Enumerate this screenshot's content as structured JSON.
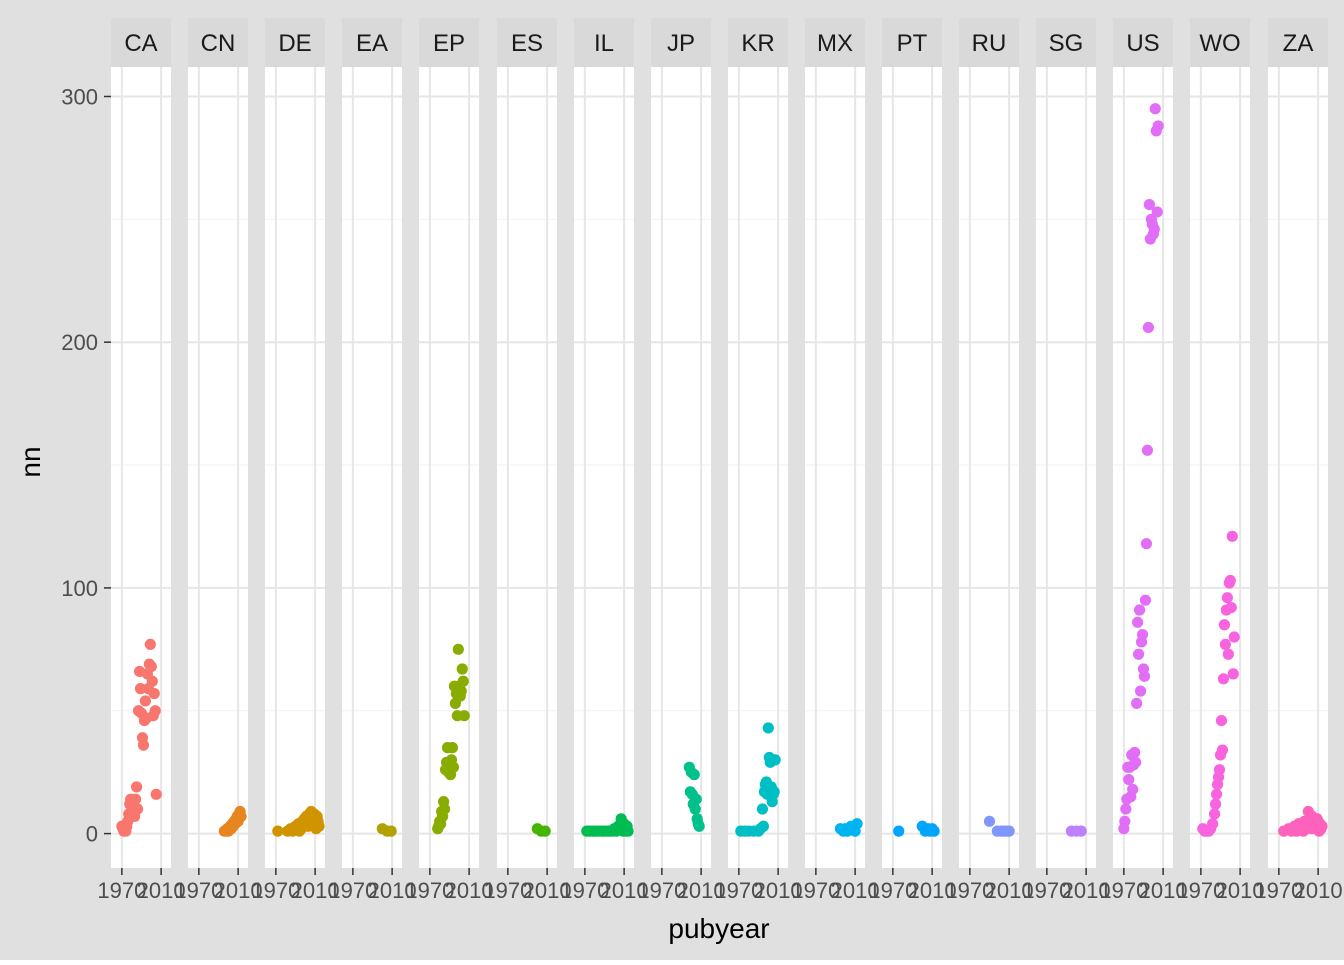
{
  "chart_data": {
    "type": "scatter",
    "title": "",
    "xlabel": "pubyear",
    "ylabel": "nn",
    "x_ticks": [
      1970,
      2010
    ],
    "y_ticks": [
      0,
      100,
      200,
      300
    ],
    "xlim": [
      1962,
      2017
    ],
    "ylim": [
      -14,
      312
    ],
    "grid": true,
    "legend": "none",
    "facets": [
      {
        "name": "CA",
        "color": "#F8766D",
        "points": [
          [
            1970,
            3
          ],
          [
            1971,
            2
          ],
          [
            1972,
            1
          ],
          [
            1973,
            2
          ],
          [
            1974,
            1
          ],
          [
            1975,
            3
          ],
          [
            1976,
            5
          ],
          [
            1977,
            8
          ],
          [
            1978,
            12
          ],
          [
            1979,
            14
          ],
          [
            1980,
            9
          ],
          [
            1981,
            13
          ],
          [
            1982,
            8
          ],
          [
            1983,
            7
          ],
          [
            1984,
            14
          ],
          [
            1985,
            19
          ],
          [
            1986,
            10
          ],
          [
            1987,
            50
          ],
          [
            1988,
            66
          ],
          [
            1989,
            59
          ],
          [
            1990,
            49
          ],
          [
            1991,
            39
          ],
          [
            1992,
            36
          ],
          [
            1993,
            46
          ],
          [
            1994,
            54
          ],
          [
            1995,
            47
          ],
          [
            1996,
            65
          ],
          [
            1997,
            59
          ],
          [
            1998,
            69
          ],
          [
            1999,
            77
          ],
          [
            2000,
            68
          ],
          [
            2001,
            62
          ],
          [
            2002,
            48
          ],
          [
            2003,
            57
          ],
          [
            2004,
            50
          ],
          [
            2005,
            16
          ]
        ]
      },
      {
        "name": "CN",
        "color": "#E7851E",
        "points": [
          [
            1996,
            1
          ],
          [
            1998,
            1
          ],
          [
            1999,
            2
          ],
          [
            2000,
            1
          ],
          [
            2001,
            2
          ],
          [
            2002,
            3
          ],
          [
            2003,
            2
          ],
          [
            2004,
            4
          ],
          [
            2005,
            3
          ],
          [
            2006,
            5
          ],
          [
            2007,
            4
          ],
          [
            2008,
            6
          ],
          [
            2009,
            7
          ],
          [
            2010,
            5
          ],
          [
            2011,
            8
          ],
          [
            2012,
            9
          ],
          [
            2013,
            7
          ]
        ]
      },
      {
        "name": "DE",
        "color": "#D09400",
        "points": [
          [
            1972,
            1
          ],
          [
            1982,
            1
          ],
          [
            1985,
            2
          ],
          [
            1987,
            1
          ],
          [
            1990,
            3
          ],
          [
            1991,
            2
          ],
          [
            1993,
            4
          ],
          [
            1994,
            1
          ],
          [
            1996,
            2
          ],
          [
            1997,
            5
          ],
          [
            1998,
            3
          ],
          [
            1999,
            6
          ],
          [
            2000,
            4
          ],
          [
            2001,
            7
          ],
          [
            2002,
            5
          ],
          [
            2003,
            3
          ],
          [
            2004,
            8
          ],
          [
            2005,
            6
          ],
          [
            2006,
            9
          ],
          [
            2007,
            7
          ],
          [
            2008,
            4
          ],
          [
            2009,
            8
          ],
          [
            2010,
            6
          ],
          [
            2011,
            2
          ],
          [
            2012,
            7
          ],
          [
            2013,
            5
          ],
          [
            2014,
            3
          ]
        ]
      },
      {
        "name": "EA",
        "color": "#B2A100",
        "points": [
          [
            2000,
            2
          ],
          [
            2005,
            1
          ],
          [
            2009,
            1
          ]
        ]
      },
      {
        "name": "EP",
        "color": "#89AC00",
        "points": [
          [
            1978,
            2
          ],
          [
            1979,
            3
          ],
          [
            1980,
            5
          ],
          [
            1981,
            4
          ],
          [
            1982,
            9
          ],
          [
            1983,
            7
          ],
          [
            1984,
            13
          ],
          [
            1985,
            10
          ],
          [
            1986,
            26
          ],
          [
            1987,
            29
          ],
          [
            1988,
            35
          ],
          [
            1989,
            25
          ],
          [
            1990,
            28
          ],
          [
            1991,
            24
          ],
          [
            1992,
            30
          ],
          [
            1993,
            35
          ],
          [
            1994,
            27
          ],
          [
            1995,
            60
          ],
          [
            1996,
            53
          ],
          [
            1997,
            57
          ],
          [
            1998,
            48
          ],
          [
            1999,
            75
          ],
          [
            2000,
            60
          ],
          [
            2001,
            56
          ],
          [
            2002,
            58
          ],
          [
            2003,
            67
          ],
          [
            2004,
            62
          ],
          [
            2005,
            48
          ]
        ]
      },
      {
        "name": "ES",
        "color": "#45B500",
        "points": [
          [
            2000,
            2
          ],
          [
            2004,
            1
          ],
          [
            2008,
            1
          ]
        ]
      },
      {
        "name": "IL",
        "color": "#00BC51",
        "points": [
          [
            1972,
            1
          ],
          [
            1975,
            1
          ],
          [
            1978,
            1
          ],
          [
            1980,
            1
          ],
          [
            1982,
            1
          ],
          [
            1985,
            1
          ],
          [
            1988,
            1
          ],
          [
            1990,
            1
          ],
          [
            1993,
            1
          ],
          [
            1995,
            1
          ],
          [
            1998,
            1
          ],
          [
            2000,
            2
          ],
          [
            2002,
            1
          ],
          [
            2004,
            3
          ],
          [
            2006,
            2
          ],
          [
            2007,
            6
          ],
          [
            2008,
            3
          ],
          [
            2009,
            1
          ],
          [
            2010,
            4
          ],
          [
            2011,
            2
          ],
          [
            2012,
            1
          ],
          [
            2013,
            3
          ],
          [
            2014,
            1
          ]
        ]
      },
      {
        "name": "JP",
        "color": "#00C08B",
        "points": [
          [
            1998,
            27
          ],
          [
            1999,
            17
          ],
          [
            2000,
            25
          ],
          [
            2001,
            16
          ],
          [
            2002,
            12
          ],
          [
            2003,
            24
          ],
          [
            2004,
            10
          ],
          [
            2005,
            14
          ],
          [
            2006,
            6
          ],
          [
            2007,
            4
          ],
          [
            2008,
            3
          ]
        ]
      },
      {
        "name": "KR",
        "color": "#00BFC4",
        "points": [
          [
            1972,
            1
          ],
          [
            1976,
            1
          ],
          [
            1980,
            1
          ],
          [
            1985,
            1
          ],
          [
            1990,
            1
          ],
          [
            1992,
            2
          ],
          [
            1994,
            10
          ],
          [
            1995,
            3
          ],
          [
            1996,
            17
          ],
          [
            1997,
            20
          ],
          [
            1998,
            21
          ],
          [
            1999,
            16
          ],
          [
            2000,
            43
          ],
          [
            2001,
            31
          ],
          [
            2002,
            29
          ],
          [
            2003,
            19
          ],
          [
            2004,
            13
          ],
          [
            2005,
            16
          ],
          [
            2006,
            17
          ],
          [
            2007,
            30
          ]
        ]
      },
      {
        "name": "MX",
        "color": "#00B4EF",
        "points": [
          [
            1995,
            2
          ],
          [
            1998,
            1
          ],
          [
            2000,
            2
          ],
          [
            2002,
            1
          ],
          [
            2004,
            2
          ],
          [
            2006,
            3
          ],
          [
            2008,
            2
          ],
          [
            2010,
            1
          ],
          [
            2012,
            4
          ]
        ]
      },
      {
        "name": "PT",
        "color": "#00A5FF",
        "points": [
          [
            1976,
            1
          ],
          [
            2000,
            3
          ],
          [
            2003,
            1
          ],
          [
            2006,
            2
          ],
          [
            2008,
            1
          ],
          [
            2010,
            2
          ],
          [
            2012,
            1
          ]
        ]
      },
      {
        "name": "RU",
        "color": "#7F96FF",
        "points": [
          [
            1990,
            5
          ],
          [
            1998,
            1
          ],
          [
            2002,
            1
          ],
          [
            2005,
            1
          ],
          [
            2008,
            1
          ],
          [
            2010,
            1
          ]
        ]
      },
      {
        "name": "SG",
        "color": "#BC81FF",
        "points": [
          [
            1995,
            1
          ],
          [
            2000,
            1
          ],
          [
            2005,
            1
          ]
        ]
      },
      {
        "name": "US",
        "color": "#E26EF7",
        "points": [
          [
            1970,
            2
          ],
          [
            1971,
            5
          ],
          [
            1972,
            10
          ],
          [
            1973,
            14
          ],
          [
            1974,
            27
          ],
          [
            1975,
            22
          ],
          [
            1976,
            27
          ],
          [
            1977,
            15
          ],
          [
            1978,
            32
          ],
          [
            1979,
            18
          ],
          [
            1980,
            28
          ],
          [
            1981,
            33
          ],
          [
            1982,
            29
          ],
          [
            1983,
            53
          ],
          [
            1984,
            86
          ],
          [
            1985,
            73
          ],
          [
            1986,
            91
          ],
          [
            1987,
            58
          ],
          [
            1988,
            78
          ],
          [
            1989,
            81
          ],
          [
            1990,
            67
          ],
          [
            1991,
            64
          ],
          [
            1992,
            95
          ],
          [
            1993,
            118
          ],
          [
            1994,
            156
          ],
          [
            1995,
            206
          ],
          [
            1996,
            256
          ],
          [
            1997,
            242
          ],
          [
            1998,
            250
          ],
          [
            1999,
            248
          ],
          [
            2000,
            244
          ],
          [
            2001,
            246
          ],
          [
            2002,
            295
          ],
          [
            2003,
            286
          ],
          [
            2004,
            253
          ],
          [
            2005,
            288
          ]
        ]
      },
      {
        "name": "WO",
        "color": "#F863DF",
        "points": [
          [
            1972,
            2
          ],
          [
            1974,
            1
          ],
          [
            1976,
            1
          ],
          [
            1978,
            1
          ],
          [
            1980,
            2
          ],
          [
            1982,
            4
          ],
          [
            1984,
            8
          ],
          [
            1985,
            12
          ],
          [
            1986,
            16
          ],
          [
            1987,
            20
          ],
          [
            1988,
            23
          ],
          [
            1989,
            26
          ],
          [
            1990,
            32
          ],
          [
            1991,
            46
          ],
          [
            1992,
            34
          ],
          [
            1993,
            63
          ],
          [
            1994,
            85
          ],
          [
            1995,
            77
          ],
          [
            1996,
            91
          ],
          [
            1997,
            96
          ],
          [
            1998,
            73
          ],
          [
            1999,
            102
          ],
          [
            2000,
            103
          ],
          [
            2001,
            92
          ],
          [
            2002,
            121
          ],
          [
            2003,
            65
          ],
          [
            2004,
            80
          ]
        ]
      },
      {
        "name": "ZA",
        "color": "#FF62BC",
        "points": [
          [
            1975,
            1
          ],
          [
            1980,
            2
          ],
          [
            1983,
            1
          ],
          [
            1986,
            3
          ],
          [
            1988,
            1
          ],
          [
            1990,
            4
          ],
          [
            1992,
            2
          ],
          [
            1994,
            3
          ],
          [
            1995,
            1
          ],
          [
            1996,
            5
          ],
          [
            1998,
            2
          ],
          [
            2000,
            9
          ],
          [
            2001,
            4
          ],
          [
            2002,
            6
          ],
          [
            2003,
            2
          ],
          [
            2004,
            7
          ],
          [
            2005,
            3
          ],
          [
            2006,
            5
          ],
          [
            2007,
            2
          ],
          [
            2008,
            4
          ],
          [
            2009,
            6
          ],
          [
            2010,
            3
          ],
          [
            2011,
            1
          ],
          [
            2012,
            4
          ],
          [
            2013,
            2
          ],
          [
            2014,
            3
          ]
        ]
      }
    ]
  }
}
